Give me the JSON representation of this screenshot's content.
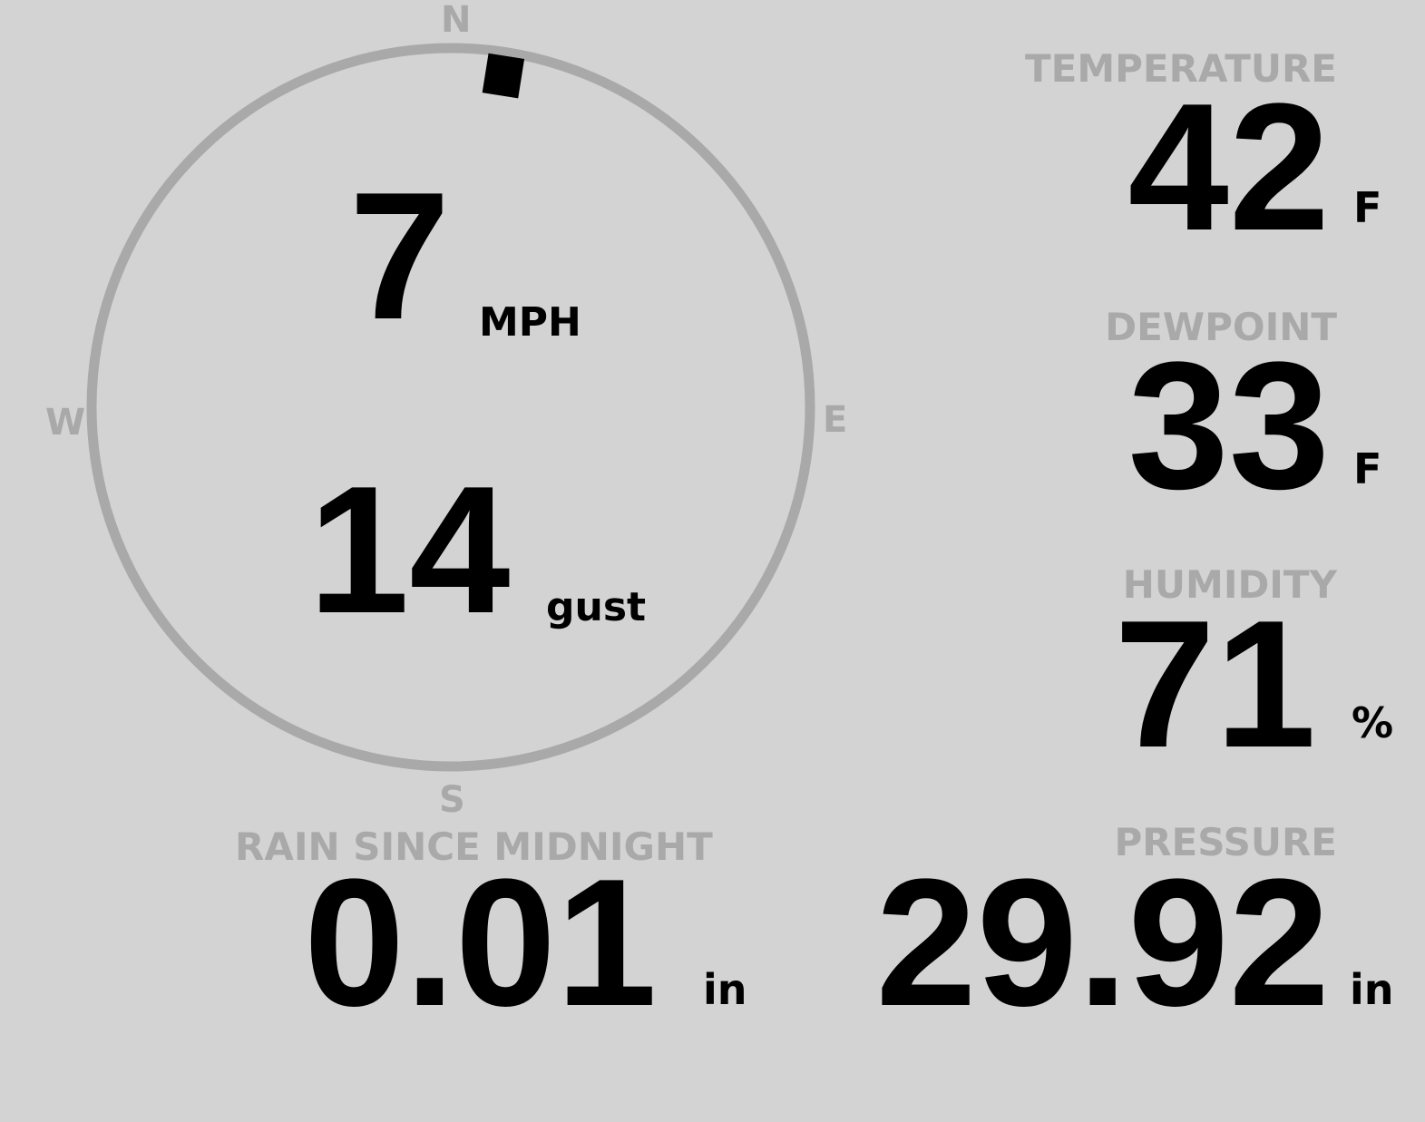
{
  "wind": {
    "speed": "7",
    "speed_unit": "MPH",
    "gust": "14",
    "gust_unit": "gust",
    "direction_degrees": 9,
    "compass": {
      "n": "N",
      "e": "E",
      "s": "S",
      "w": "W"
    }
  },
  "temperature": {
    "label": "TEMPERATURE",
    "value": "42",
    "unit": "F"
  },
  "dewpoint": {
    "label": "DEWPOINT",
    "value": "33",
    "unit": "F"
  },
  "humidity": {
    "label": "HUMIDITY",
    "value": "71",
    "unit": "%"
  },
  "rain": {
    "label": "RAIN SINCE MIDNIGHT",
    "value": "0.01",
    "unit": "in"
  },
  "pressure": {
    "label": "PRESSURE",
    "value": "29.92",
    "unit": "in"
  },
  "colors": {
    "background": "#d3d3d3",
    "label": "#a9a9a9",
    "value": "#000000"
  }
}
